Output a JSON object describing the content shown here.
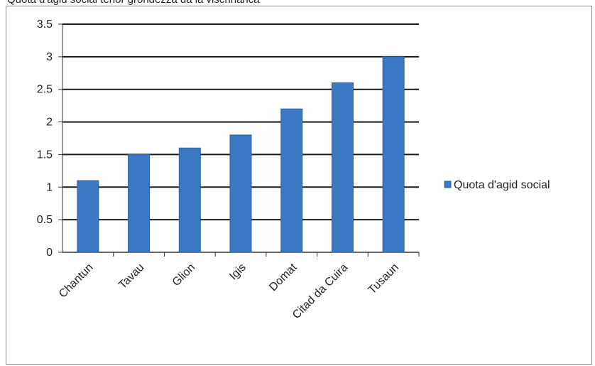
{
  "caption": "Quota d'agid social tenor grondezza da la vischnanca",
  "chart_data": {
    "type": "bar",
    "categories": [
      "Chantun",
      "Tavau",
      "Glion",
      "Igis",
      "Domat",
      "Citad da Cuira",
      "Tusaun"
    ],
    "series": [
      {
        "name": "Quota d'agid social",
        "values": [
          1.1,
          1.5,
          1.6,
          1.8,
          2.2,
          2.6,
          3.0
        ]
      }
    ],
    "ylim": [
      0,
      3.5
    ],
    "yticks": [
      0,
      0.5,
      1,
      1.5,
      2,
      2.5,
      3,
      3.5
    ],
    "ytick_labels": [
      "0",
      "0.5",
      "1",
      "1.5",
      "2",
      "2.5",
      "3",
      "3.5"
    ],
    "grid": true,
    "legend": "right",
    "colors": {
      "bar": "#3a78c3",
      "bar_edge": "#2d62a3",
      "grid": "#1a1a1a",
      "axis": "#333333"
    }
  }
}
